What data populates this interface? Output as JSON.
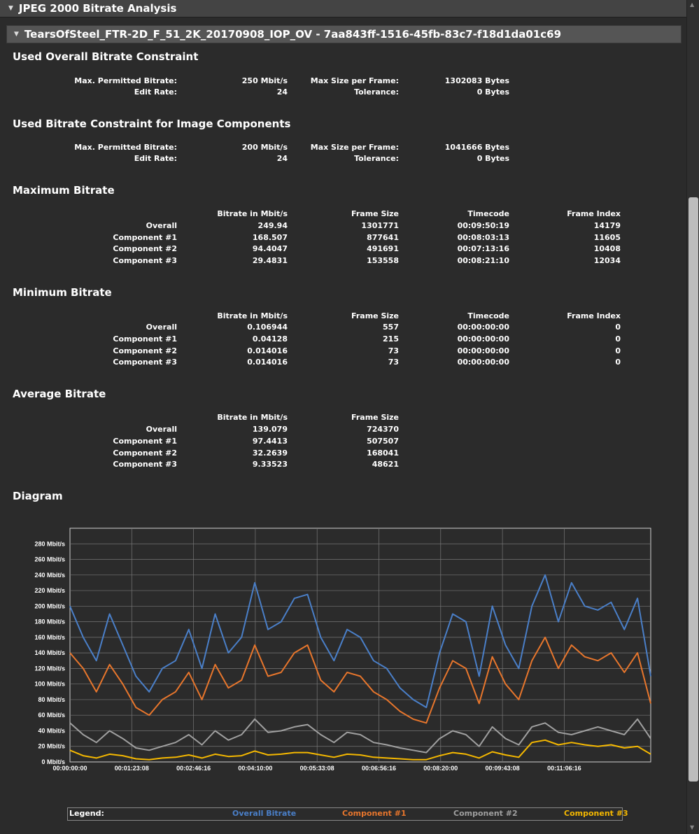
{
  "header": {
    "title": "JPEG 2000 Bitrate Analysis"
  },
  "subheader": {
    "title": "TearsOfSteel_FTR-2D_F_51_2K_20170908_IOP_OV - 7aa843ff-1516-45fb-83c7-f18d1da01c69"
  },
  "overall_constraint": {
    "title": "Used Overall Bitrate Constraint",
    "max_permitted_label": "Max. Permitted Bitrate:",
    "max_permitted_value": "250 Mbit/s",
    "max_size_label": "Max Size per Frame:",
    "max_size_value": "1302083 Bytes",
    "edit_rate_label": "Edit Rate:",
    "edit_rate_value": "24",
    "tolerance_label": "Tolerance:",
    "tolerance_value": "0 Bytes"
  },
  "component_constraint": {
    "title": "Used Bitrate Constraint for Image Components",
    "max_permitted_label": "Max. Permitted Bitrate:",
    "max_permitted_value": "200 Mbit/s",
    "max_size_label": "Max Size per Frame:",
    "max_size_value": "1041666 Bytes",
    "edit_rate_label": "Edit Rate:",
    "edit_rate_value": "24",
    "tolerance_label": "Tolerance:",
    "tolerance_value": "0 Bytes"
  },
  "maximum": {
    "title": "Maximum Bitrate",
    "headers": [
      "Bitrate in Mbit/s",
      "Frame Size",
      "Timecode",
      "Frame Index"
    ],
    "rows": [
      [
        "Overall",
        "249.94",
        "1301771",
        "00:09:50:19",
        "14179"
      ],
      [
        "Component #1",
        "168.507",
        "877641",
        "00:08:03:13",
        "11605"
      ],
      [
        "Component #2",
        "94.4047",
        "491691",
        "00:07:13:16",
        "10408"
      ],
      [
        "Component #3",
        "29.4831",
        "153558",
        "00:08:21:10",
        "12034"
      ]
    ]
  },
  "minimum": {
    "title": "Minimum Bitrate",
    "headers": [
      "Bitrate in Mbit/s",
      "Frame Size",
      "Timecode",
      "Frame Index"
    ],
    "rows": [
      [
        "Overall",
        "0.106944",
        "557",
        "00:00:00:00",
        "0"
      ],
      [
        "Component #1",
        "0.04128",
        "215",
        "00:00:00:00",
        "0"
      ],
      [
        "Component #2",
        "0.014016",
        "73",
        "00:00:00:00",
        "0"
      ],
      [
        "Component #3",
        "0.014016",
        "73",
        "00:00:00:00",
        "0"
      ]
    ]
  },
  "average": {
    "title": "Average Bitrate",
    "headers": [
      "Bitrate in Mbit/s",
      "Frame Size"
    ],
    "rows": [
      [
        "Overall",
        "139.079",
        "724370"
      ],
      [
        "Component #1",
        "97.4413",
        "507507"
      ],
      [
        "Component #2",
        "32.2639",
        "168041"
      ],
      [
        "Component #3",
        "9.33523",
        "48621"
      ]
    ]
  },
  "diagram": {
    "title": "Diagram"
  },
  "legend": {
    "label": "Legend:"
  },
  "colors": {
    "overall": "#4a7fc8",
    "component1": "#e8762c",
    "component2": "#a0a0a0",
    "component3": "#f5b800"
  },
  "chart_data": {
    "type": "line",
    "yticks": [
      "0 Mbit/s",
      "20 Mbit/s",
      "40 Mbit/s",
      "60 Mbit/s",
      "80 Mbit/s",
      "100 Mbit/s",
      "120 Mbit/s",
      "140 Mbit/s",
      "160 Mbit/s",
      "180 Mbit/s",
      "200 Mbit/s",
      "220 Mbit/s",
      "240 Mbit/s",
      "260 Mbit/s",
      "280 Mbit/s"
    ],
    "xticks": [
      "00:00:00:00",
      "00:01:23:08",
      "00:02:46:16",
      "00:04:10:00",
      "00:05:33:08",
      "00:06:56:16",
      "00:08:20:00",
      "00:09:43:08",
      "00:11:06:16"
    ],
    "ylim": [
      0,
      300
    ],
    "xlim_seconds": [
      0,
      880
    ],
    "grid": true,
    "x_seconds": [
      0,
      20,
      40,
      60,
      80,
      100,
      120,
      140,
      160,
      180,
      200,
      220,
      240,
      260,
      280,
      300,
      320,
      340,
      360,
      380,
      400,
      420,
      440,
      460,
      480,
      500,
      520,
      540,
      560,
      580,
      600,
      620,
      640,
      660,
      680,
      700,
      720,
      740,
      760,
      780,
      800,
      820,
      840,
      860,
      880
    ],
    "series": [
      {
        "name": "Overall Bitrate",
        "values": [
          200,
          160,
          130,
          190,
          150,
          110,
          90,
          120,
          130,
          170,
          120,
          190,
          140,
          160,
          230,
          170,
          180,
          210,
          215,
          160,
          130,
          170,
          160,
          130,
          120,
          95,
          80,
          70,
          140,
          190,
          180,
          110,
          200,
          150,
          120,
          200,
          240,
          180,
          230,
          200,
          195,
          205,
          170,
          210,
          110
        ]
      },
      {
        "name": "Component #1",
        "values": [
          140,
          120,
          90,
          125,
          100,
          70,
          60,
          80,
          90,
          115,
          80,
          125,
          95,
          105,
          150,
          110,
          115,
          140,
          150,
          105,
          90,
          115,
          110,
          90,
          80,
          65,
          55,
          50,
          95,
          130,
          120,
          75,
          135,
          100,
          80,
          130,
          160,
          120,
          150,
          135,
          130,
          140,
          115,
          140,
          75
        ]
      },
      {
        "name": "Component #2",
        "values": [
          50,
          35,
          25,
          40,
          30,
          18,
          15,
          20,
          25,
          35,
          22,
          40,
          28,
          35,
          55,
          38,
          40,
          45,
          48,
          35,
          25,
          38,
          35,
          25,
          22,
          18,
          15,
          12,
          30,
          40,
          35,
          20,
          45,
          30,
          22,
          45,
          50,
          38,
          35,
          40,
          45,
          40,
          35,
          55,
          30
        ]
      },
      {
        "name": "Component #3",
        "values": [
          15,
          8,
          5,
          10,
          8,
          4,
          3,
          5,
          6,
          9,
          5,
          10,
          7,
          8,
          14,
          9,
          10,
          12,
          12,
          9,
          6,
          10,
          9,
          6,
          5,
          4,
          3,
          3,
          8,
          12,
          10,
          5,
          13,
          9,
          6,
          25,
          28,
          22,
          25,
          22,
          20,
          22,
          18,
          20,
          10
        ]
      }
    ]
  }
}
